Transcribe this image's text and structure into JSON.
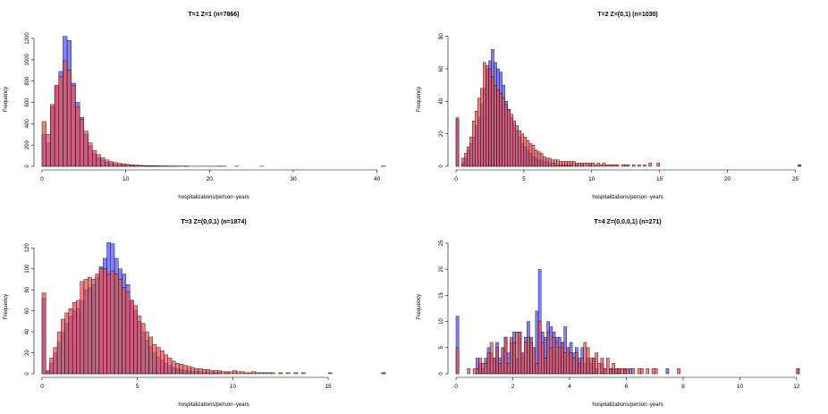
{
  "figure": {
    "colors": {
      "series_a": "#6666ff",
      "series_b": "#e8504f",
      "overlap": "#b0175a",
      "edge": "#000000"
    }
  },
  "chart_data": [
    {
      "type": "bar",
      "title": "T=1    Z=1    (n=7866)",
      "xlabel": "hospitalizations/person−years",
      "ylabel": "Frequency",
      "xlim": [
        0,
        41
      ],
      "ylim": [
        0,
        1250
      ],
      "xticks": [
        0,
        10,
        20,
        30,
        40
      ],
      "yticks": [
        0,
        200,
        400,
        600,
        800,
        1000,
        1200
      ],
      "bin_width": 0.5,
      "bins_start": 0,
      "series": [
        {
          "name": "",
          "color": "series_a",
          "values": [
            300,
            220,
            560,
            750,
            890,
            1220,
            1180,
            780,
            600,
            460,
            300,
            190,
            120,
            80,
            60,
            40,
            30,
            20,
            15,
            12,
            10,
            8,
            6,
            5,
            4,
            3,
            3,
            2,
            2,
            2,
            1,
            1,
            1,
            0,
            1,
            0,
            0,
            0,
            0,
            0,
            0,
            0,
            1,
            0,
            0,
            0,
            0,
            0,
            0,
            0,
            0,
            0,
            0,
            0,
            0,
            0,
            0,
            0,
            0,
            0,
            0,
            0,
            0,
            0,
            0,
            0,
            0,
            0,
            0,
            0,
            0,
            0,
            0,
            0,
            0,
            0,
            0,
            0,
            0,
            0,
            0,
            1
          ]
        },
        {
          "name": "",
          "color": "series_b",
          "values": [
            420,
            300,
            580,
            760,
            840,
            990,
            900,
            760,
            560,
            440,
            330,
            220,
            150,
            110,
            80,
            60,
            45,
            35,
            28,
            22,
            18,
            14,
            12,
            10,
            8,
            7,
            6,
            5,
            4,
            4,
            3,
            3,
            2,
            2,
            2,
            1,
            1,
            1,
            1,
            1,
            1,
            1,
            1,
            1,
            0,
            0,
            1,
            0,
            0,
            0,
            0,
            0,
            1,
            0,
            0,
            0,
            0,
            0,
            0,
            0,
            0,
            0,
            0,
            0,
            0,
            0,
            0,
            0,
            0,
            0,
            0,
            0,
            0,
            0,
            0,
            0,
            0,
            0,
            0,
            0,
            0,
            1
          ]
        }
      ]
    },
    {
      "type": "bar",
      "title": "T=2    Z=(0,1)    (n=1030)",
      "xlabel": "hospitalizations/person−years",
      "ylabel": "Frequency",
      "xlim": [
        0,
        25.3
      ],
      "ylim": [
        0,
        82
      ],
      "xticks": [
        0,
        5,
        10,
        15,
        20,
        25
      ],
      "yticks": [
        0,
        20,
        40,
        60,
        80
      ],
      "bin_width": 0.2,
      "bins_start": 0,
      "series": [
        {
          "name": "",
          "color": "series_a",
          "values": [
            29,
            0,
            2,
            5,
            10,
            14,
            18,
            25,
            30,
            38,
            48,
            60,
            65,
            72,
            64,
            60,
            58,
            50,
            40,
            35,
            30,
            26,
            22,
            18,
            14,
            12,
            10,
            8,
            6,
            5,
            4,
            4,
            3,
            3,
            2,
            2,
            2,
            1,
            1,
            1,
            1,
            1,
            1,
            0,
            1,
            0,
            1,
            0,
            0,
            1,
            0,
            0,
            0,
            0,
            0,
            0,
            0,
            0,
            0,
            0,
            0,
            0,
            0,
            0,
            0,
            0,
            0,
            0,
            0,
            0,
            0,
            0,
            0,
            0,
            0,
            0,
            0,
            0,
            0,
            0,
            0,
            0,
            0,
            0,
            0,
            0,
            0,
            0,
            0,
            0,
            0,
            0,
            0,
            0,
            0,
            0,
            0,
            0,
            0,
            0,
            0,
            0,
            0,
            0,
            0,
            0,
            0,
            0,
            0,
            0,
            0,
            0,
            0,
            0,
            0,
            0,
            0,
            0,
            0,
            0,
            0,
            0,
            0,
            0,
            0,
            0,
            1
          ]
        },
        {
          "name": "",
          "color": "series_b",
          "values": [
            30,
            0,
            5,
            8,
            12,
            18,
            28,
            34,
            42,
            48,
            64,
            62,
            60,
            55,
            50,
            47,
            45,
            42,
            38,
            35,
            32,
            28,
            25,
            22,
            20,
            18,
            16,
            14,
            13,
            10,
            9,
            8,
            6,
            5,
            5,
            4,
            4,
            4,
            3,
            3,
            3,
            3,
            3,
            3,
            2,
            2,
            2,
            2,
            2,
            2,
            2,
            1,
            2,
            1,
            2,
            1,
            1,
            1,
            1,
            1,
            0,
            1,
            1,
            1,
            0,
            1,
            0,
            1,
            0,
            1,
            0,
            2,
            0,
            0,
            2,
            0,
            0,
            0,
            0,
            0,
            0,
            0,
            0,
            0,
            0,
            0,
            0,
            0,
            0,
            0,
            0,
            0,
            0,
            0,
            0,
            0,
            0,
            0,
            0,
            0,
            0,
            0,
            0,
            0,
            0,
            0,
            0,
            0,
            0,
            0,
            0,
            0,
            0,
            0,
            0,
            0,
            0,
            0,
            0,
            0,
            0,
            0,
            0,
            0,
            0,
            0,
            1
          ]
        }
      ]
    },
    {
      "type": "bar",
      "title": "T=3    Z=(0,0,1)    (n=1874)",
      "xlabel": "hospitalizations/person−years",
      "ylabel": "Frequency",
      "xlim": [
        0,
        18
      ],
      "ylim": [
        0,
        127
      ],
      "xticks": [
        0,
        5,
        10,
        15
      ],
      "yticks": [
        0,
        20,
        40,
        60,
        80,
        100,
        120
      ],
      "bin_width": 0.2,
      "bins_start": 0,
      "series": [
        {
          "name": "",
          "color": "series_a",
          "values": [
            72,
            2,
            10,
            20,
            30,
            40,
            48,
            55,
            60,
            62,
            70,
            80,
            82,
            85,
            92,
            102,
            110,
            125,
            124,
            110,
            100,
            95,
            85,
            70,
            60,
            50,
            40,
            32,
            26,
            20,
            16,
            13,
            10,
            8,
            6,
            5,
            4,
            3,
            3,
            2,
            2,
            2,
            1,
            1,
            1,
            1,
            1,
            0,
            1,
            0,
            0,
            0,
            0,
            0,
            0,
            0,
            0,
            0,
            0,
            0,
            0,
            0,
            0,
            0,
            0,
            0,
            0,
            0,
            0,
            0,
            0,
            0,
            0,
            0,
            0,
            0,
            0,
            0,
            0,
            0,
            0,
            0,
            0,
            0,
            0,
            0,
            0,
            0,
            0,
            1
          ]
        },
        {
          "name": "",
          "color": "series_b",
          "values": [
            77,
            3,
            15,
            25,
            40,
            52,
            58,
            62,
            68,
            70,
            88,
            90,
            92,
            90,
            95,
            100,
            100,
            95,
            98,
            95,
            90,
            82,
            78,
            70,
            65,
            55,
            48,
            40,
            35,
            28,
            25,
            22,
            18,
            15,
            12,
            10,
            9,
            8,
            7,
            6,
            5,
            5,
            4,
            4,
            3,
            3,
            3,
            2,
            2,
            2,
            3,
            2,
            2,
            1,
            1,
            2,
            1,
            1,
            1,
            1,
            1,
            0,
            1,
            0,
            1,
            0,
            1,
            0,
            1,
            0,
            0,
            0,
            0,
            0,
            0,
            1,
            0,
            0,
            0,
            0,
            0,
            0,
            0,
            0,
            0,
            0,
            0,
            0,
            0,
            1
          ]
        }
      ]
    },
    {
      "type": "bar",
      "title": "T=4    Z=(0,0,0,1)    (n=271)",
      "xlabel": "hospitalizations/person−years",
      "ylabel": "Frequency",
      "xlim": [
        0,
        12.1
      ],
      "ylim": [
        0,
        25.5
      ],
      "xticks": [
        0,
        2,
        4,
        6,
        8,
        10,
        12
      ],
      "yticks": [
        0,
        5,
        10,
        15,
        20,
        25
      ],
      "bin_width": 0.1,
      "bins_start": 0,
      "series": [
        {
          "name": "",
          "color": "series_a",
          "values": [
            11,
            0,
            0,
            0,
            0,
            0,
            0,
            3,
            2,
            1,
            3,
            5,
            4,
            3,
            6,
            3,
            5,
            7,
            4,
            6,
            8,
            3,
            8,
            4,
            7,
            10,
            7,
            5,
            12,
            20,
            8,
            7,
            10,
            9,
            8,
            7,
            7,
            6,
            9,
            5,
            6,
            4,
            5,
            3,
            5,
            2,
            3,
            2,
            3,
            1,
            0,
            2,
            1,
            0,
            1,
            1,
            1,
            1,
            0,
            1,
            0,
            1,
            0,
            0,
            0,
            0,
            0,
            0,
            0,
            0,
            0,
            0,
            0,
            0,
            1,
            0,
            0,
            0,
            0,
            0,
            0,
            0,
            0,
            0,
            0,
            0,
            0,
            0,
            0,
            0,
            0,
            0,
            0,
            0,
            0,
            0,
            0,
            0,
            0,
            0,
            0,
            0,
            0,
            0,
            0,
            0,
            0,
            0,
            0,
            0,
            0,
            0,
            0,
            0,
            0,
            0,
            0,
            0,
            0,
            0,
            1
          ]
        },
        {
          "name": "",
          "color": "series_b",
          "values": [
            5,
            0,
            0,
            0,
            1,
            0,
            1,
            1,
            3,
            2,
            2,
            4,
            6,
            3,
            5,
            2,
            5,
            7,
            2,
            7,
            6,
            8,
            8,
            4,
            6,
            7,
            6,
            5,
            2,
            10,
            6,
            3,
            8,
            5,
            7,
            6,
            5,
            6,
            4,
            5,
            4,
            3,
            4,
            2,
            3,
            6,
            5,
            3,
            3,
            4,
            2,
            3,
            1,
            3,
            1,
            2,
            1,
            1,
            1,
            1,
            1,
            0,
            1,
            0,
            1,
            1,
            0,
            1,
            0,
            1,
            1,
            0,
            0,
            0,
            0,
            0,
            0,
            0,
            1,
            0,
            0,
            0,
            0,
            0,
            0,
            0,
            0,
            0,
            0,
            0,
            0,
            0,
            0,
            0,
            0,
            0,
            0,
            0,
            0,
            0,
            0,
            0,
            0,
            0,
            0,
            0,
            0,
            0,
            0,
            0,
            0,
            0,
            0,
            0,
            0,
            0,
            0,
            0,
            0,
            0,
            1
          ]
        }
      ]
    }
  ]
}
